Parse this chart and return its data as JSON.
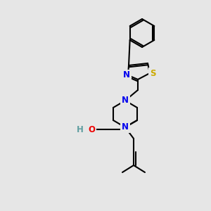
{
  "bg_color": "#e6e6e6",
  "bond_color": "#000000",
  "bond_width": 1.5,
  "atom_colors": {
    "N": "#0000ee",
    "O": "#ee0000",
    "S": "#ccaa00",
    "H": "#5f9ea0",
    "C": "#000000"
  },
  "font_size_atom": 8.5,
  "fig_w": 3.0,
  "fig_h": 3.0,
  "dpi": 100,
  "xlim": [
    0,
    300
  ],
  "ylim": [
    0,
    300
  ]
}
